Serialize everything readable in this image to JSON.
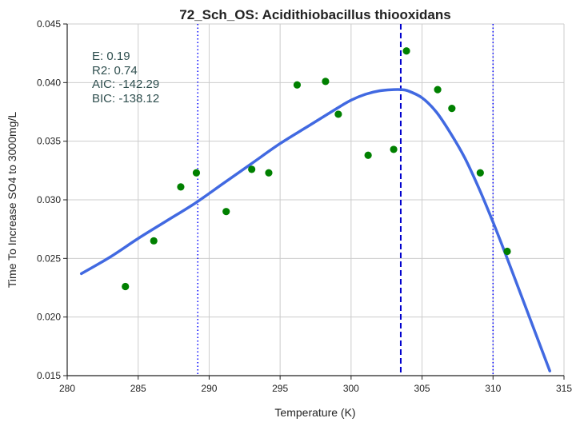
{
  "chart_data": {
    "type": "scatter",
    "title": "72_Sch_OS: Acidithiobacillus thiooxidans",
    "xlabel": "Temperature (K)",
    "ylabel": "Time To Increase SO4 to 3000mg/L",
    "xlim": [
      280,
      315
    ],
    "ylim": [
      0.015,
      0.045
    ],
    "xticks": [
      "280",
      "285",
      "290",
      "295",
      "300",
      "305",
      "310",
      "315"
    ],
    "yticks": [
      "0.015",
      "0.020",
      "0.025",
      "0.030",
      "0.035",
      "0.040",
      "0.045"
    ],
    "grid": true,
    "stats": [
      "E:  0.19",
      "R2:  0.74",
      "AIC: -142.29",
      "BIC: -138.12"
    ],
    "points": {
      "color": "#008000",
      "x": [
        284.1,
        286.1,
        288.0,
        289.1,
        291.2,
        293.0,
        294.2,
        296.2,
        298.2,
        299.1,
        301.2,
        303.0,
        303.9,
        306.1,
        307.1,
        309.1,
        311.0
      ],
      "y": [
        0.0226,
        0.0265,
        0.0311,
        0.0323,
        0.029,
        0.0326,
        0.0323,
        0.0398,
        0.0401,
        0.0373,
        0.0338,
        0.0343,
        0.0427,
        0.0394,
        0.0378,
        0.0323,
        0.0256
      ]
    },
    "fit_line": {
      "color": "#4169e1",
      "x": [
        281.0,
        283.0,
        285.0,
        287.0,
        289.0,
        291.0,
        293.0,
        295.0,
        297.0,
        299.0,
        300.0,
        301.0,
        302.0,
        303.0,
        303.5,
        304.0,
        305.0,
        306.0,
        307.0,
        308.0,
        309.0,
        310.0,
        311.0,
        312.0,
        313.0,
        314.0
      ],
      "y": [
        0.0237,
        0.0251,
        0.0267,
        0.0282,
        0.0297,
        0.0314,
        0.0331,
        0.0348,
        0.0363,
        0.0378,
        0.0385,
        0.039,
        0.0393,
        0.0394,
        0.0394,
        0.0393,
        0.0387,
        0.0375,
        0.0357,
        0.0336,
        0.031,
        0.0281,
        0.025,
        0.0218,
        0.0186,
        0.0154
      ]
    },
    "vlines": [
      {
        "x": 303.5,
        "style": "dashed",
        "color": "#0000cd"
      },
      {
        "x": 289.2,
        "style": "dotted",
        "color": "#0000ff"
      },
      {
        "x": 310.0,
        "style": "dotted",
        "color": "#0000ff"
      }
    ]
  }
}
